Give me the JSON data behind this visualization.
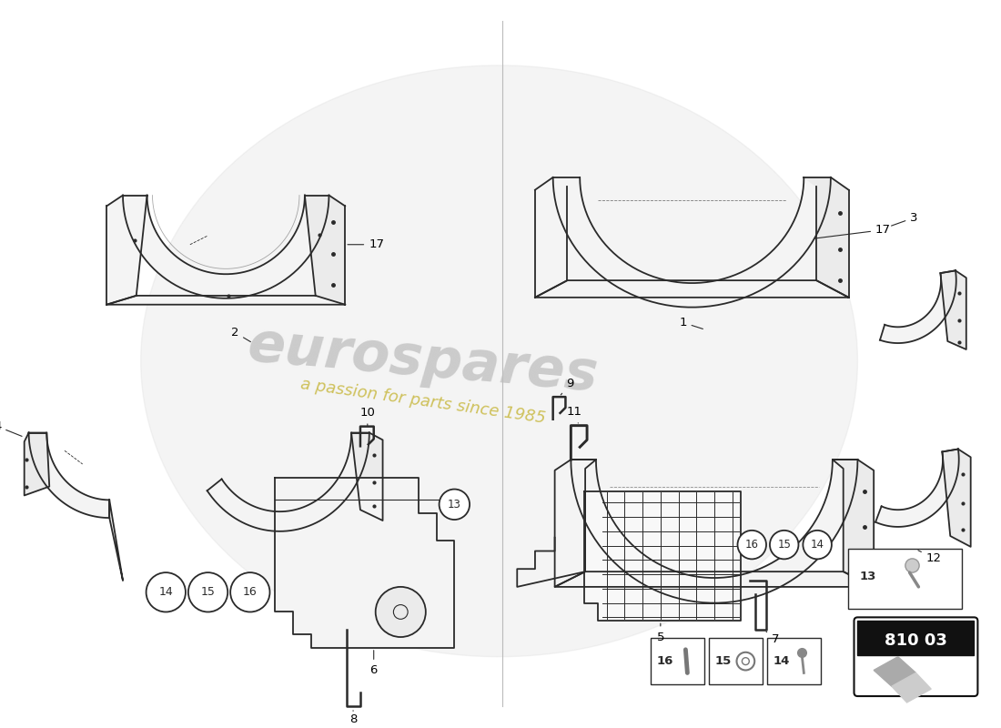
{
  "bg_color": "#ffffff",
  "line_color": "#2a2a2a",
  "label_color": "#000000",
  "watermark_gray": "#c0c0c0",
  "watermark_yellow": "#c8b840",
  "part_number": "810 03"
}
